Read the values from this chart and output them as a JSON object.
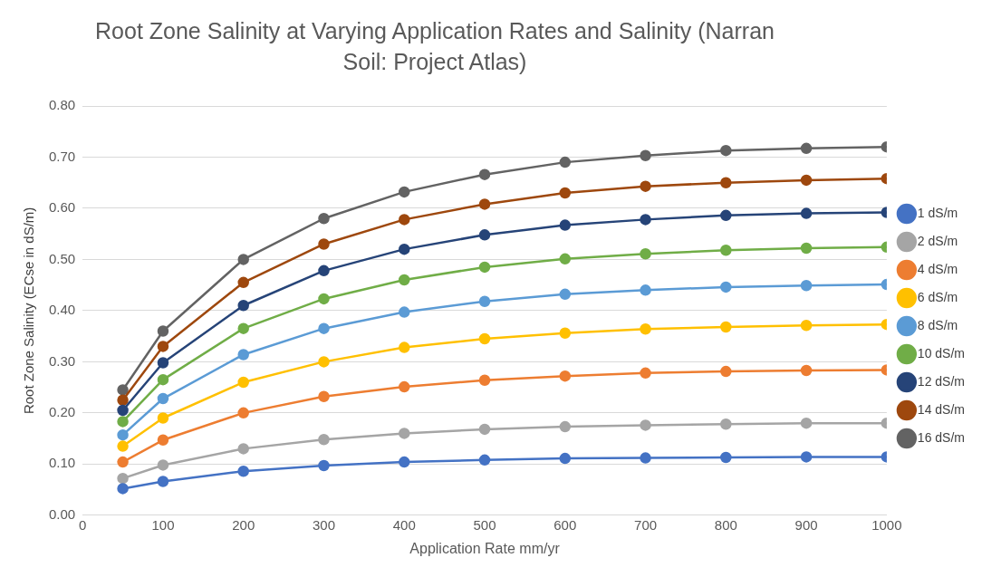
{
  "chart_data": {
    "type": "line",
    "title": "Root Zone Salinity at Varying Application Rates and Salinity (Narran Soil: Project Atlas)",
    "xlabel": "Application Rate mm/yr",
    "ylabel": "Root Zone Salinity (ECse in dS/m)",
    "x": [
      50,
      100,
      200,
      300,
      400,
      500,
      600,
      700,
      800,
      900,
      1000
    ],
    "series": [
      {
        "name": "1 dS/m",
        "color": "#4472c4",
        "values": [
          0.052,
          0.066,
          0.086,
          0.097,
          0.104,
          0.108,
          0.111,
          0.112,
          0.113,
          0.114,
          0.114
        ]
      },
      {
        "name": "2 dS/m",
        "color": "#a5a5a5",
        "values": [
          0.072,
          0.098,
          0.13,
          0.148,
          0.16,
          0.168,
          0.173,
          0.176,
          0.178,
          0.18,
          0.18
        ]
      },
      {
        "name": "4 dS/m",
        "color": "#ed7d31",
        "values": [
          0.104,
          0.147,
          0.2,
          0.232,
          0.251,
          0.264,
          0.272,
          0.278,
          0.281,
          0.283,
          0.284
        ]
      },
      {
        "name": "6 dS/m",
        "color": "#ffc000",
        "values": [
          0.135,
          0.19,
          0.26,
          0.3,
          0.328,
          0.345,
          0.356,
          0.364,
          0.368,
          0.371,
          0.373
        ]
      },
      {
        "name": "8 dS/m",
        "color": "#5b9bd5",
        "values": [
          0.157,
          0.228,
          0.314,
          0.365,
          0.397,
          0.418,
          0.432,
          0.44,
          0.446,
          0.449,
          0.451
        ]
      },
      {
        "name": "10 dS/m",
        "color": "#70ad47",
        "values": [
          0.183,
          0.265,
          0.365,
          0.423,
          0.46,
          0.485,
          0.501,
          0.511,
          0.518,
          0.522,
          0.524
        ]
      },
      {
        "name": "12 dS/m",
        "color": "#264478",
        "values": [
          0.205,
          0.298,
          0.41,
          0.478,
          0.52,
          0.548,
          0.567,
          0.578,
          0.586,
          0.59,
          0.592
        ]
      },
      {
        "name": "14 dS/m",
        "color": "#9e480e",
        "values": [
          0.225,
          0.33,
          0.455,
          0.53,
          0.578,
          0.608,
          0.63,
          0.643,
          0.65,
          0.655,
          0.658
        ]
      },
      {
        "name": "16 dS/m",
        "color": "#636363",
        "values": [
          0.245,
          0.36,
          0.5,
          0.58,
          0.632,
          0.666,
          0.69,
          0.703,
          0.713,
          0.717,
          0.72
        ]
      }
    ],
    "xlim": [
      0,
      1000
    ],
    "xticks": [
      0,
      100,
      200,
      300,
      400,
      500,
      600,
      700,
      800,
      900,
      1000
    ],
    "ylim": [
      0,
      0.8
    ],
    "yticks": [
      {
        "value": 0,
        "label": "0.00"
      },
      {
        "value": 0.1,
        "label": "0.10"
      },
      {
        "value": 0.2,
        "label": "0.20"
      },
      {
        "value": 0.3,
        "label": "0.30"
      },
      {
        "value": 0.4,
        "label": "0.40"
      },
      {
        "value": 0.5,
        "label": "0.50"
      },
      {
        "value": 0.6,
        "label": "0.60"
      },
      {
        "value": 0.7,
        "label": "0.70"
      },
      {
        "value": 0.8,
        "label": "0.80"
      }
    ],
    "grid": "y",
    "legend": "right",
    "marker": "circle",
    "line_style": "solid"
  }
}
